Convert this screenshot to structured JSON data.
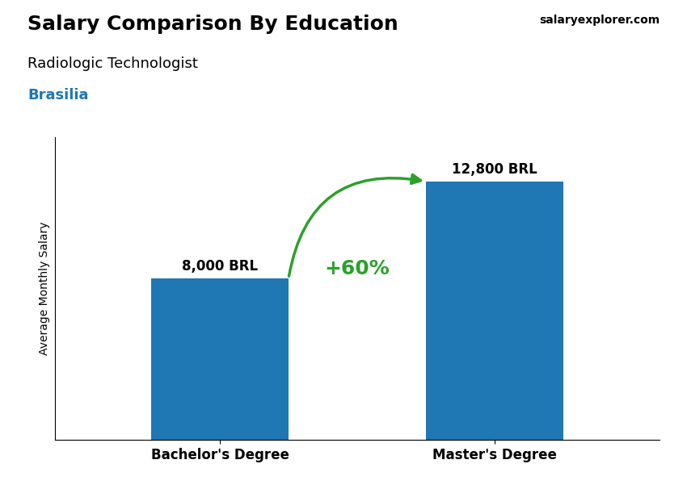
{
  "chart_data": {
    "type": "bar",
    "title": "Salary Comparison By Education",
    "subtitle": "Radiologic Technologist",
    "ylabel": "Average Monthly Salary",
    "annotations": [
      "+60%",
      "Brasilia",
      "salaryexplorer.com"
    ],
    "categories": [
      "Bachelor's Degree",
      "Master's Degree"
    ],
    "values": [
      8000,
      12800
    ],
    "value_labels": [
      "8,000 BRL",
      "12,800 BRL"
    ],
    "data_labels": true,
    "ylim": [
      0,
      15000
    ],
    "tick_labels": "x"
  }
}
